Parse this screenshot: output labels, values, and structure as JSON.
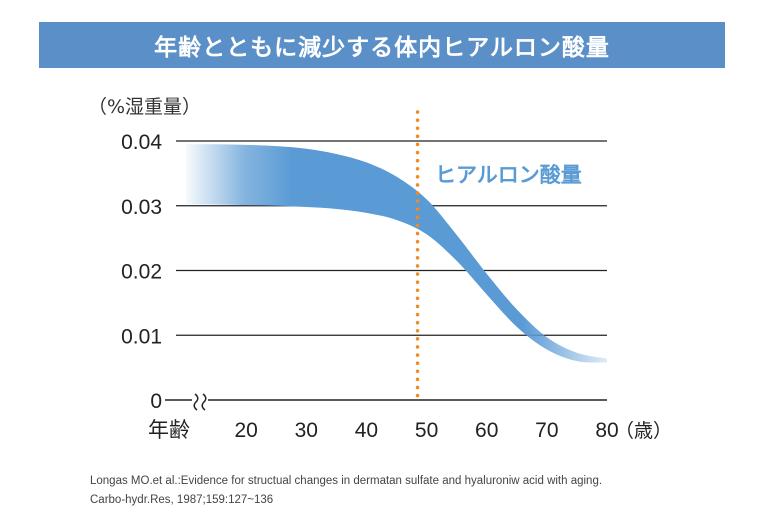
{
  "header": {
    "title": "年齢とともに減少する体内ヒアルロン酸量"
  },
  "chart_data": {
    "type": "area",
    "title": "年齢とともに減少する体内ヒアルロン酸量",
    "ylabel": "（%湿重量）",
    "xlabel": "年齢",
    "xunit": "（歳）",
    "x_ticks": [
      20,
      30,
      40,
      50,
      60,
      70,
      80
    ],
    "y_ticks": [
      "0",
      "0.01",
      "0.02",
      "0.03",
      "0.04"
    ],
    "y_tick_values": [
      0,
      0.01,
      0.02,
      0.03,
      0.04
    ],
    "ylim": [
      0,
      0.04
    ],
    "xlim": [
      10,
      80
    ],
    "axis_break": true,
    "series": [
      {
        "name": "ヒアルロン酸量",
        "x": [
          10,
          15,
          20,
          25,
          30,
          35,
          40,
          45,
          50,
          55,
          60,
          65,
          70,
          75,
          80
        ],
        "upper": [
          0.0395,
          0.0395,
          0.0394,
          0.0392,
          0.0388,
          0.038,
          0.0367,
          0.0345,
          0.031,
          0.0255,
          0.0195,
          0.014,
          0.0097,
          0.0073,
          0.0064
        ],
        "lower": [
          0.0302,
          0.0302,
          0.0301,
          0.03,
          0.0298,
          0.0295,
          0.0289,
          0.0278,
          0.0256,
          0.0215,
          0.0163,
          0.0113,
          0.0078,
          0.006,
          0.0058
        ],
        "color": "#5b9bd5"
      }
    ],
    "annotations": [
      {
        "text": "ヒアルロン酸量",
        "color": "#5b9bd5"
      }
    ],
    "reference_line": {
      "x": 48.5,
      "color": "#f08a24",
      "style": "dotted"
    },
    "grid": true
  },
  "citation": {
    "line1": "Longas MO.et al.:Evidence for structual changes in dermatan sulfate and hyaluroniw acid with aging.",
    "line2": "Carbo-hydr.Res, 1987;159:127~136"
  }
}
